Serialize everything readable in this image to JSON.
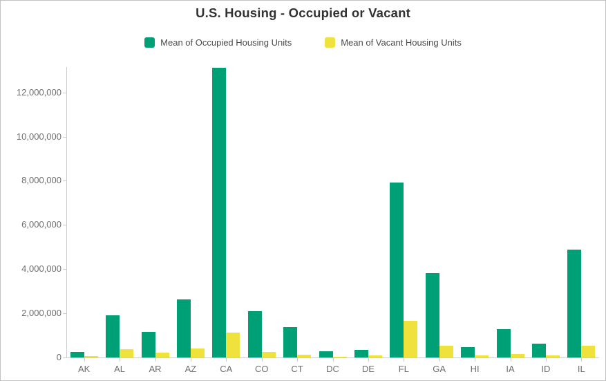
{
  "title": "U.S. Housing - Occupied or Vacant",
  "colors": {
    "occupied": "#00a076",
    "vacant": "#efe23d",
    "axis": "#cccccc",
    "tick_label": "#6e6e6e",
    "title_text": "#323232",
    "legend_text": "#4a4a4a",
    "frame_border": "#c2c2c2",
    "background": "#ffffff"
  },
  "chart_data": {
    "type": "bar",
    "title": "U.S. Housing - Occupied or Vacant",
    "categories": [
      "AK",
      "AL",
      "AR",
      "AZ",
      "CA",
      "CO",
      "CT",
      "DC",
      "DE",
      "FL",
      "GA",
      "HI",
      "IA",
      "ID",
      "IL"
    ],
    "series": [
      {
        "name": "Mean of Occupied Housing Units",
        "color": "#00a076",
        "values": [
          260000,
          1900000,
          1170000,
          2640000,
          13120000,
          2110000,
          1390000,
          290000,
          360000,
          7930000,
          3830000,
          470000,
          1270000,
          640000,
          4890000
        ]
      },
      {
        "name": "Mean of Vacant Housing Units",
        "color": "#efe23d",
        "values": [
          75000,
          390000,
          230000,
          420000,
          1130000,
          240000,
          130000,
          40000,
          90000,
          1650000,
          530000,
          100000,
          160000,
          100000,
          520000
        ]
      }
    ],
    "xlabel": "",
    "ylabel": "",
    "ylim": [
      0,
      13150000
    ],
    "yticks": [
      0,
      2000000,
      4000000,
      6000000,
      8000000,
      10000000,
      12000000
    ],
    "grid": false,
    "legend_position": "top"
  }
}
